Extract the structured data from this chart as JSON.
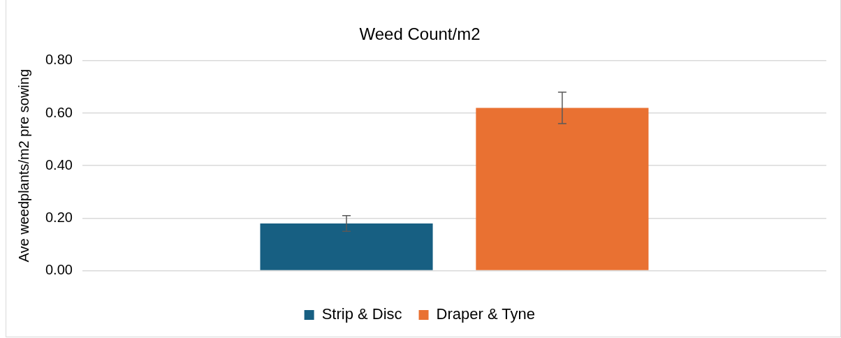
{
  "chart_data": {
    "type": "bar",
    "title": "Weed Count/m2",
    "ylabel": "Ave weedplants/m2 pre sowing",
    "categories": [
      null
    ],
    "series": [
      {
        "name": "Strip & Disc",
        "color": "#175f82",
        "values": [
          0.18
        ],
        "errors": [
          0.03
        ]
      },
      {
        "name": "Draper & Tyne",
        "color": "#e97132",
        "values": [
          0.62
        ],
        "errors": [
          0.06
        ]
      }
    ],
    "ylim": [
      0,
      0.8
    ],
    "yticks": [
      {
        "value": 0,
        "label": "0.00"
      },
      {
        "value": 0.2,
        "label": "0.20"
      },
      {
        "value": 0.4,
        "label": "0.40"
      },
      {
        "value": 0.6,
        "label": "0.60"
      },
      {
        "value": 0.8,
        "label": "0.80"
      }
    ],
    "grid": "y",
    "legend": "bottom"
  }
}
